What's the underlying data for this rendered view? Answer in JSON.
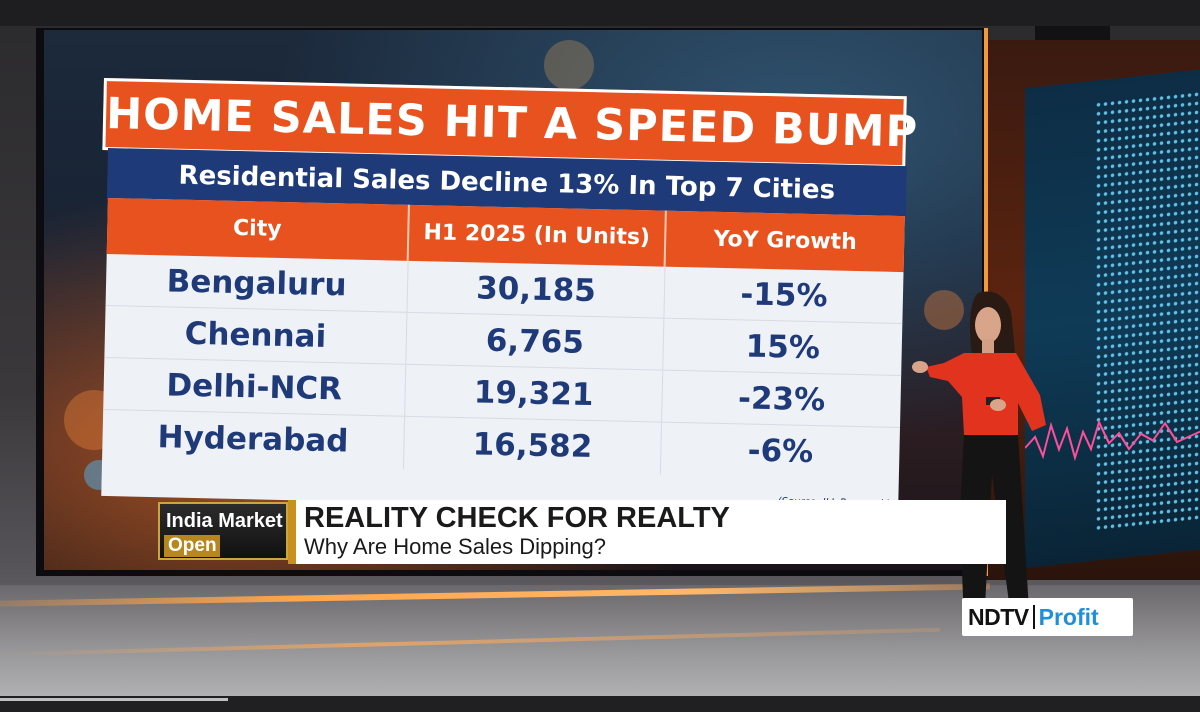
{
  "graphic": {
    "headline": "HOME SALES HIT A SPEED BUMP",
    "subhead": "Residential Sales Decline 13% In Top 7 Cities",
    "table": {
      "headers": [
        "City",
        "H1 2025 (In Units)",
        "YoY Growth"
      ],
      "rows": [
        [
          "Bengaluru",
          "30,185",
          "-15%"
        ],
        [
          "Chennai",
          "6,765",
          "15%"
        ],
        [
          "Delhi-NCR",
          "19,321",
          "-23%"
        ],
        [
          "Hyderabad",
          "16,582",
          "-6%"
        ]
      ]
    },
    "source": "(Source: JLL Research)"
  },
  "lower_third": {
    "show_tag_line1": "India Market",
    "show_tag_line2": "Open",
    "title": "REALITY CHECK FOR REALTY",
    "subtitle": "Why Are Home Sales Dipping?"
  },
  "logo": {
    "ndtv": "NDTV",
    "profit": "Profit"
  },
  "colors": {
    "headline_orange": "#e8521f",
    "navy": "#1f3a78",
    "gold": "#c8911f",
    "profit_blue": "#1f8fd6"
  },
  "playback": {
    "progress": 0.19
  }
}
